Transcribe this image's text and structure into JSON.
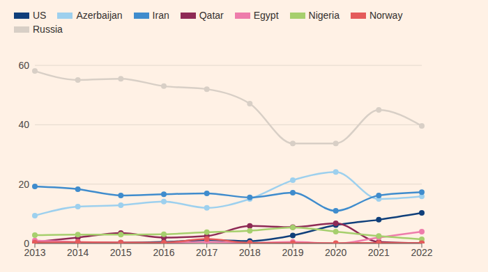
{
  "chart_data": {
    "type": "line",
    "categories": [
      "2013",
      "2014",
      "2015",
      "2016",
      "2017",
      "2018",
      "2019",
      "2020",
      "2021",
      "2022"
    ],
    "series": [
      {
        "name": "US",
        "color": "#0f3f7a",
        "values": [
          0.5,
          0.4,
          0.3,
          0.5,
          1.2,
          0.8,
          2.7,
          6.2,
          8,
          10.3
        ]
      },
      {
        "name": "Azerbaijan",
        "color": "#9dd0ee",
        "values": [
          9.4,
          12.4,
          12.9,
          14.1,
          12,
          15,
          21.3,
          24.1,
          15,
          15.9
        ]
      },
      {
        "name": "Iran",
        "color": "#3f8ccd",
        "values": [
          19.2,
          18.3,
          16.2,
          16.6,
          16.9,
          15.5,
          17.1,
          11,
          16.2,
          17.3
        ]
      },
      {
        "name": "Qatar",
        "color": "#8e2a55",
        "values": [
          0.5,
          2,
          3.5,
          2,
          2.5,
          5.9,
          5.5,
          6.8,
          0.5,
          0.1
        ]
      },
      {
        "name": "Egypt",
        "color": "#ee7cab",
        "values": [
          1,
          0.5,
          0.3,
          0.2,
          0.5,
          0.2,
          0.5,
          0,
          2,
          4
        ]
      },
      {
        "name": "Nigeria",
        "color": "#a6cf6d",
        "values": [
          2.8,
          3,
          3,
          3.1,
          3.8,
          4.3,
          5.4,
          4,
          2.5,
          1.4
        ]
      },
      {
        "name": "Norway",
        "color": "#e45b5b",
        "values": [
          0.3,
          0.4,
          0.3,
          0.3,
          1.5,
          0.2,
          0.1,
          0.1,
          0.2,
          0.1
        ]
      },
      {
        "name": "Russia",
        "color": "#d8cfc6",
        "values": [
          58.1,
          55.1,
          55.5,
          53,
          52,
          47.1,
          33.7,
          33.7,
          45,
          39.6
        ]
      }
    ],
    "ylim": [
      0,
      60
    ],
    "yticks": [
      0,
      20,
      40,
      60
    ],
    "grid": true,
    "legend": "top",
    "marker": "circle"
  }
}
